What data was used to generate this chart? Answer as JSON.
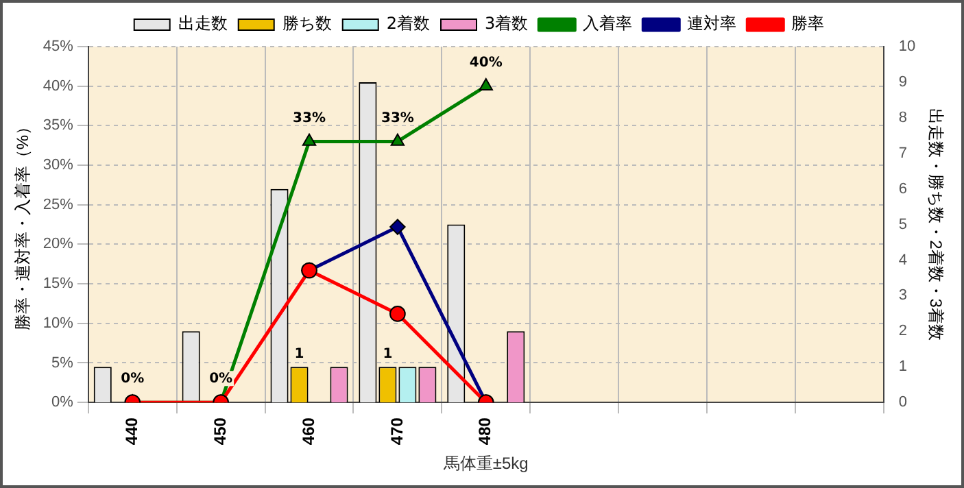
{
  "chart_data": {
    "type": "bar",
    "xlabel": "馬体重±5kg",
    "ylabel": "勝率・連対率・入着率（%）",
    "y2label": "出走数・勝ち数・2着数・3着数",
    "categories": [
      "440",
      "450",
      "460",
      "470",
      "480",
      null,
      null,
      null,
      null
    ],
    "series": [
      {
        "name": "出走数",
        "axis": "y2",
        "color": "#e6e6e6",
        "values": [
          1,
          2,
          6,
          9,
          5,
          null,
          null,
          null,
          null
        ]
      },
      {
        "name": "勝ち数",
        "axis": "y2",
        "color": "#f0c000",
        "values": [
          0,
          0,
          1,
          1,
          0,
          null,
          null,
          null,
          null
        ],
        "value_labels": [
          null,
          null,
          "1",
          "1",
          null,
          null,
          null,
          null,
          null
        ]
      },
      {
        "name": "2着数",
        "axis": "y2",
        "color": "#b4f0f0",
        "values": [
          0,
          0,
          0,
          1,
          0,
          null,
          null,
          null,
          null
        ]
      },
      {
        "name": "3着数",
        "axis": "y2",
        "color": "#f096c8",
        "values": [
          0,
          0,
          1,
          1,
          2,
          null,
          null,
          null,
          null
        ]
      },
      {
        "name": "入着率",
        "type": "line",
        "axis": "y",
        "color": "#008000",
        "marker": "triangle",
        "values": [
          0,
          0,
          33,
          33,
          40,
          null,
          null,
          null,
          null
        ],
        "value_labels": [
          "0%",
          "0%",
          "33%",
          "33%",
          "40%",
          null,
          null,
          null,
          null
        ]
      },
      {
        "name": "連対率",
        "type": "line",
        "axis": "y",
        "color": "#000080",
        "marker": "diamond",
        "values": [
          null,
          null,
          16.7,
          22.2,
          0,
          null,
          null,
          null,
          null
        ]
      },
      {
        "name": "勝率",
        "type": "line",
        "axis": "y",
        "color": "#ff0000",
        "marker": "circle",
        "values": [
          0,
          0,
          16.7,
          11.2,
          0,
          null,
          null,
          null,
          null
        ]
      }
    ],
    "ylim": [
      0,
      45
    ],
    "yticks": [
      {
        "value": 0,
        "label": "0%"
      },
      {
        "value": 5,
        "label": "5%"
      },
      {
        "value": 10,
        "label": "10%"
      },
      {
        "value": 15,
        "label": "15%"
      },
      {
        "value": 20,
        "label": "20%"
      },
      {
        "value": 25,
        "label": "25%"
      },
      {
        "value": 30,
        "label": "30%"
      },
      {
        "value": 35,
        "label": "35%"
      },
      {
        "value": 40,
        "label": "40%"
      },
      {
        "value": 45,
        "label": "45%"
      }
    ],
    "y2lim": [
      0,
      10
    ],
    "y2ticks": [
      0,
      1,
      2,
      3,
      4,
      5,
      6,
      7,
      8,
      9,
      10
    ],
    "grid": true,
    "legend": "top",
    "line_style": "solid"
  }
}
